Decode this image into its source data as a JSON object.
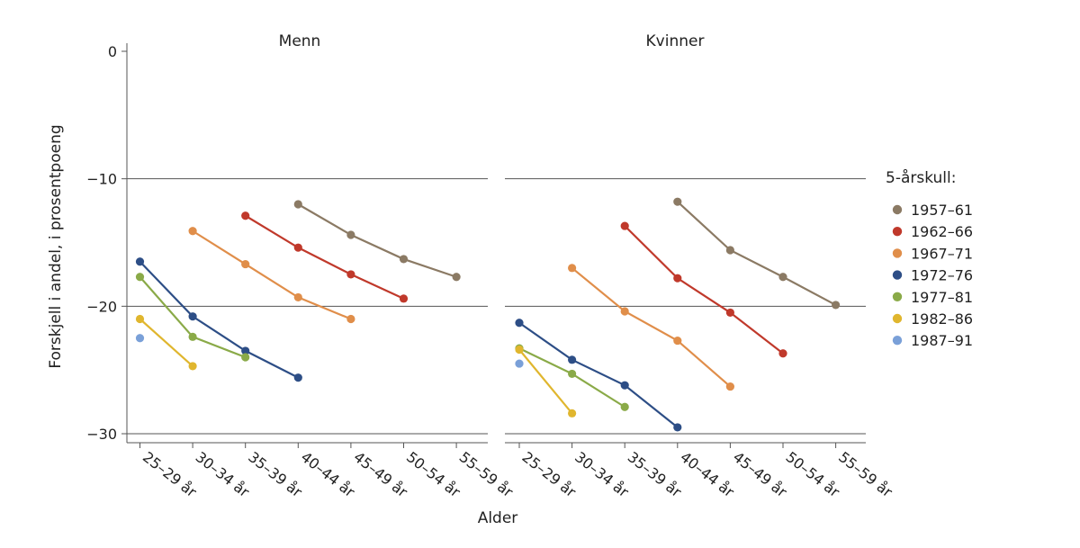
{
  "chart_data": {
    "type": "line",
    "xlabel": "Alder",
    "ylabel": "Forskjell i andel, i prosentpoeng",
    "ylim": [
      -30,
      0
    ],
    "yticks": [
      0,
      -10,
      -20,
      -30
    ],
    "categories": [
      "25–29 år",
      "30–34 år",
      "35–39 år",
      "40–44 år",
      "45–49 år",
      "50–54 år",
      "55–59 år"
    ],
    "legend_title": "5-årskull:",
    "legend_position": "right",
    "grid": "horizontal",
    "cohorts": [
      {
        "name": "1957–61",
        "color": "#8b7a64"
      },
      {
        "name": "1962–66",
        "color": "#c0392b"
      },
      {
        "name": "1967–71",
        "color": "#e08e4a"
      },
      {
        "name": "1972–76",
        "color": "#2d4e86"
      },
      {
        "name": "1977–81",
        "color": "#8aaa48"
      },
      {
        "name": "1982–86",
        "color": "#e0b62e"
      },
      {
        "name": "1987–91",
        "color": "#7aa0d8"
      }
    ],
    "panels": [
      {
        "title": "Menn",
        "series": [
          {
            "name": "1957–61",
            "values": [
              null,
              null,
              null,
              -12.0,
              -14.4,
              -16.3,
              -17.7
            ]
          },
          {
            "name": "1962–66",
            "values": [
              null,
              null,
              -12.9,
              -15.4,
              -17.5,
              -19.4,
              null
            ]
          },
          {
            "name": "1967–71",
            "values": [
              null,
              -14.1,
              -16.7,
              -19.3,
              -21.0,
              null,
              null
            ]
          },
          {
            "name": "1972–76",
            "values": [
              -16.5,
              -20.8,
              -23.5,
              -25.6,
              null,
              null,
              null
            ]
          },
          {
            "name": "1977–81",
            "values": [
              -17.7,
              -22.4,
              -24.0,
              null,
              null,
              null,
              null
            ]
          },
          {
            "name": "1982–86",
            "values": [
              -21.0,
              -24.7,
              null,
              null,
              null,
              null,
              null
            ]
          },
          {
            "name": "1987–91",
            "values": [
              -22.5,
              null,
              null,
              null,
              null,
              null,
              null
            ]
          }
        ]
      },
      {
        "title": "Kvinner",
        "series": [
          {
            "name": "1957–61",
            "values": [
              null,
              null,
              null,
              -11.8,
              -15.6,
              -17.7,
              -19.9
            ]
          },
          {
            "name": "1962–66",
            "values": [
              null,
              null,
              -13.7,
              -17.8,
              -20.5,
              -23.7,
              null
            ]
          },
          {
            "name": "1967–71",
            "values": [
              null,
              -17.0,
              -20.4,
              -22.7,
              -26.3,
              null,
              null
            ]
          },
          {
            "name": "1972–76",
            "values": [
              -21.3,
              -24.2,
              -26.2,
              -29.5,
              null,
              null,
              null
            ]
          },
          {
            "name": "1977–81",
            "values": [
              -23.3,
              -25.3,
              -27.9,
              null,
              null,
              null,
              null
            ]
          },
          {
            "name": "1982–86",
            "values": [
              -23.4,
              -28.4,
              null,
              null,
              null,
              null,
              null
            ]
          },
          {
            "name": "1987–91",
            "values": [
              -24.5,
              null,
              null,
              null,
              null,
              null,
              null
            ]
          }
        ]
      }
    ]
  }
}
